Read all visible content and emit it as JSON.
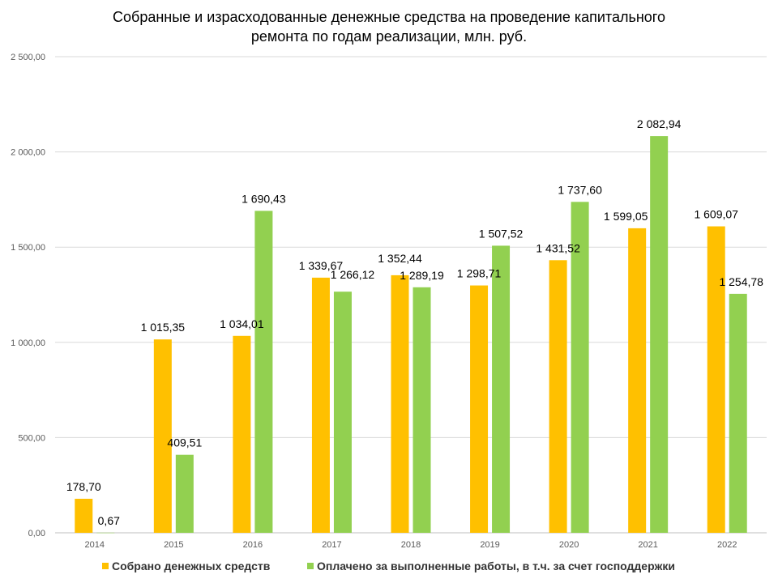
{
  "chart_data": {
    "type": "bar",
    "title_lines": [
      "Собранные и израсходованные денежные средства на проведение капитального",
      "ремонта по годам реализации, млн. руб."
    ],
    "categories": [
      "2014",
      "2015",
      "2016",
      "2017",
      "2018",
      "2019",
      "2020",
      "2021",
      "2022"
    ],
    "ylim": [
      0,
      2500
    ],
    "y_ticks": [
      0,
      500,
      1000,
      1500,
      2000,
      2500
    ],
    "y_tick_labels": [
      "0,00",
      "500,00",
      "1 000,00",
      "1 500,00",
      "2 000,00",
      "2 500,00"
    ],
    "grid": true,
    "legend_position": "bottom",
    "series": [
      {
        "name": "Собрано денежных средств",
        "color": "#FFC000",
        "values": [
          178.7,
          1015.35,
          1034.01,
          1339.67,
          1352.44,
          1298.71,
          1431.52,
          1599.05,
          1609.07
        ],
        "labels": [
          "178,70",
          "1 015,35",
          "1 034,01",
          "1 339,67",
          "1 352,44",
          "1 298,71",
          "1 431,52",
          "1 599,05",
          "1 609,07"
        ]
      },
      {
        "name": "Оплачено за выполненные работы, в т.ч. за счет господдержки",
        "color": "#92D050",
        "values": [
          0.67,
          409.51,
          1690.43,
          1266.12,
          1289.19,
          1507.52,
          1737.6,
          2082.94,
          1254.78
        ],
        "labels": [
          "0,67",
          "409,51",
          "1 690,43",
          "1 266,12",
          "1 289,19",
          "1 507,52",
          "1 737,60",
          "2 082,94",
          "1 254,78"
        ]
      }
    ]
  }
}
